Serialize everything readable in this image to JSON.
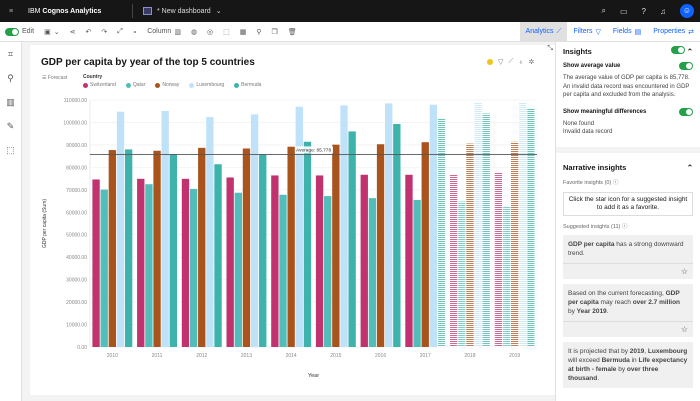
{
  "topbar": {
    "brand_prefix": "IBM",
    "brand_name": "Cognos Analytics",
    "dashboard": "* New dashboard"
  },
  "toolbar": {
    "edit": "Edit",
    "column": "Column",
    "tabs": [
      "Analytics",
      "Filters",
      "Fields",
      "Properties"
    ]
  },
  "card": {
    "forecast": "Forecast",
    "legend_title": "Country"
  },
  "average_label": "Average: 85,778",
  "chart_data": {
    "type": "bar",
    "title": "GDP per capita by year of the top 5 countries",
    "xlabel": "Year",
    "ylabel": "GDP per capita (Sum)",
    "ylim": [
      0,
      110000
    ],
    "yticks": [
      "0.00",
      "10000.00",
      "20000.00",
      "30000.00",
      "40000.00",
      "50000.00",
      "60000.00",
      "70000.00",
      "80000.00",
      "90000.00",
      "100000.00",
      "110000.00"
    ],
    "grid": true,
    "legend": "top-left",
    "categories": [
      "2010",
      "2011",
      "2012",
      "2013",
      "2014",
      "2015",
      "2016",
      "2017",
      "2018",
      "2019"
    ],
    "average": 85778,
    "series": [
      {
        "name": "Switzerland",
        "color": "#c0336f",
        "values": [
          74600,
          74900,
          74900,
          75500,
          76400,
          76400,
          76700,
          76700,
          77000,
          77600
        ],
        "forecast": [
          false,
          false,
          false,
          false,
          false,
          false,
          false,
          false,
          true,
          true
        ]
      },
      {
        "name": "Qatar",
        "color": "#52bdb9",
        "values": [
          70100,
          72500,
          70400,
          68700,
          67800,
          67200,
          66300,
          65500,
          64800,
          62700
        ],
        "forecast": [
          false,
          false,
          false,
          false,
          false,
          false,
          false,
          false,
          true,
          true
        ]
      },
      {
        "name": "Norway",
        "color": "#a8541c",
        "values": [
          87700,
          87400,
          88700,
          88400,
          89200,
          90100,
          90300,
          91200,
          90600,
          91400
        ],
        "forecast": [
          false,
          false,
          false,
          false,
          false,
          false,
          false,
          false,
          true,
          true
        ]
      },
      {
        "name": "Luxembourg",
        "color": "#bfe2f9",
        "values": [
          104800,
          105100,
          102400,
          103600,
          107000,
          107600,
          108500,
          107900,
          108800,
          109100
        ],
        "forecast": [
          false,
          false,
          false,
          false,
          false,
          false,
          false,
          false,
          true,
          true
        ]
      },
      {
        "name": "Bermuda",
        "color": "#3db3ac",
        "values": [
          88000,
          85700,
          81400,
          85700,
          91400,
          96000,
          99300,
          101600,
          104000,
          106200
        ],
        "forecast": [
          false,
          false,
          false,
          false,
          false,
          false,
          false,
          true,
          true,
          true
        ]
      }
    ]
  },
  "panel": {
    "insights_title": "Insights",
    "show_average": "Show average value",
    "average_text": "The average value of GDP per capita is 85,778.",
    "invalid_text": "An invalid data record was encountered in GDP per capita and excluded from the analysis.",
    "show_diff": "Show meaningful differences",
    "none_found": "None found",
    "invalid_record": "Invalid data record",
    "narrative_title": "Narrative insights",
    "favorite": "Favorite insights (0)",
    "fav_hint": "Click the star icon for a suggested insight to add it as a favorite.",
    "suggested": "Suggested insights (11)",
    "insights": [
      {
        "b1": "GDP per capita",
        "t1": " has a strong downward trend."
      },
      {
        "t0": "Based on the current forecasting, ",
        "b1": "GDP per capita",
        "t1": " may reach ",
        "b2": "over 2.7 million",
        "t2": " by ",
        "b3": "Year 2019",
        "t3": "."
      },
      {
        "t0": "It is projected that by ",
        "b1": "2019",
        "t1": ", ",
        "b2": "Luxembourg",
        "t2": " will exceed ",
        "b3": "Bermuda",
        "t3": " in ",
        "b4": "Life expectancy at birth - female",
        "t4": " by ",
        "b5": "over three thousand",
        "t5": "."
      }
    ]
  }
}
